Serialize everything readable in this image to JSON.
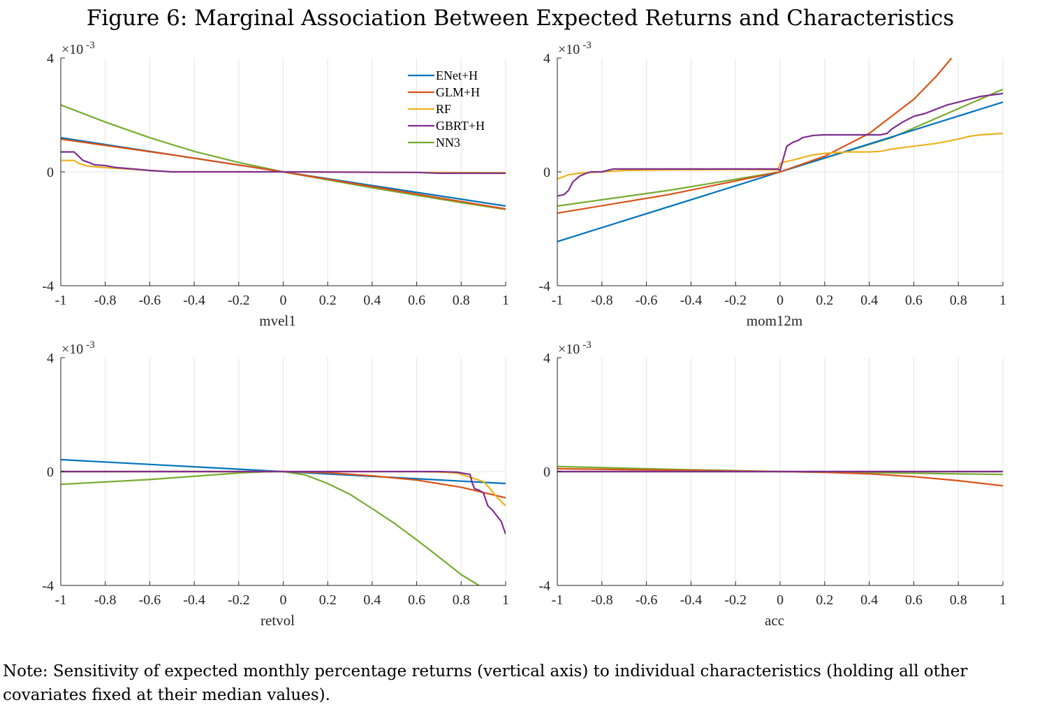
{
  "title": "Figure 6: Marginal Association Between Expected Returns and Characteristics",
  "note": "Note: Sensitivity of expected monthly percentage returns (vertical axis) to individual characteristics (holding all other covariates fixed at their median values).",
  "colors": {
    "ENet+H": "#0072BD",
    "GLM+H": "#D95319",
    "RF": "#EDB120",
    "GBRT+H": "#7E2F8E",
    "NN3": "#77AC30"
  },
  "chart_data": [
    {
      "type": "line",
      "xlabel": "mvel1",
      "xlim": [
        -1,
        1
      ],
      "ylim": [
        -4,
        4
      ],
      "x_ticks": [
        "-1",
        "-0.8",
        "-0.6",
        "-0.4",
        "-0.2",
        "0",
        "0.2",
        "0.4",
        "0.6",
        "0.8",
        "1"
      ],
      "y_ticks": [
        "4",
        "0",
        "-4"
      ],
      "y_exponent": "×10",
      "y_exponent_power": "-3",
      "legend": {
        "placement": "top-right",
        "entries": [
          "ENet+H",
          "GLM+H",
          "RF",
          "GBRT+H",
          "NN3"
        ]
      },
      "series": [
        {
          "name": "ENet+H",
          "x": [
            -1,
            0,
            1
          ],
          "y": [
            1.2,
            0,
            -1.2
          ]
        },
        {
          "name": "GLM+H",
          "x": [
            -1,
            -0.5,
            0,
            0.5,
            1
          ],
          "y": [
            1.15,
            0.6,
            0,
            -0.65,
            -1.3
          ]
        },
        {
          "name": "RF",
          "x": [
            -1,
            -0.94,
            -0.92,
            -0.88,
            -0.8,
            -0.7,
            -0.6,
            -0.5,
            0,
            0.5,
            1
          ],
          "y": [
            0.4,
            0.4,
            0.3,
            0.2,
            0.15,
            0.1,
            0.05,
            0,
            0,
            -0.02,
            -0.03
          ]
        },
        {
          "name": "GBRT+H",
          "x": [
            -1,
            -0.94,
            -0.92,
            -0.9,
            -0.88,
            -0.85,
            -0.8,
            -0.75,
            -0.7,
            -0.6,
            -0.5,
            0,
            0.6,
            0.7,
            1
          ],
          "y": [
            0.7,
            0.7,
            0.55,
            0.4,
            0.35,
            0.25,
            0.22,
            0.15,
            0.12,
            0.05,
            0,
            0,
            -0.02,
            -0.05,
            -0.05
          ]
        },
        {
          "name": "NN3",
          "x": [
            -1,
            -0.8,
            -0.6,
            -0.4,
            -0.2,
            0,
            0.2,
            0.4,
            0.6,
            0.8,
            1
          ],
          "y": [
            2.35,
            1.75,
            1.2,
            0.72,
            0.33,
            0,
            -0.28,
            -0.56,
            -0.82,
            -1.08,
            -1.32
          ]
        }
      ]
    },
    {
      "type": "line",
      "xlabel": "mom12m",
      "xlim": [
        -1,
        1
      ],
      "ylim": [
        -4,
        4
      ],
      "x_ticks": [
        "-1",
        "-0.8",
        "-0.6",
        "-0.4",
        "-0.2",
        "0",
        "0.2",
        "0.4",
        "0.6",
        "0.8",
        "1"
      ],
      "y_ticks": [
        "4",
        "0",
        "-4"
      ],
      "y_exponent": "×10",
      "y_exponent_power": "-3",
      "series": [
        {
          "name": "ENet+H",
          "x": [
            -1,
            0,
            1
          ],
          "y": [
            -2.45,
            0,
            2.45
          ]
        },
        {
          "name": "GLM+H",
          "x": [
            -1,
            -0.5,
            0,
            0.2,
            0.4,
            0.6,
            0.7,
            0.77
          ],
          "y": [
            -1.45,
            -0.8,
            0,
            0.55,
            1.35,
            2.55,
            3.35,
            4.0
          ]
        },
        {
          "name": "RF",
          "x": [
            -1,
            -0.95,
            -0.9,
            -0.8,
            -0.7,
            -0.5,
            -0.2,
            -0.01,
            0.0,
            0.02,
            0.05,
            0.1,
            0.15,
            0.2,
            0.3,
            0.4,
            0.45,
            0.5,
            0.6,
            0.7,
            0.8,
            0.85,
            0.9,
            1
          ],
          "y": [
            -0.25,
            -0.1,
            -0.05,
            0,
            0.05,
            0.07,
            0.08,
            0.07,
            0.3,
            0.35,
            0.4,
            0.5,
            0.6,
            0.65,
            0.7,
            0.7,
            0.72,
            0.8,
            0.9,
            1.0,
            1.15,
            1.25,
            1.3,
            1.35
          ]
        },
        {
          "name": "GBRT+H",
          "x": [
            -1,
            -0.97,
            -0.95,
            -0.93,
            -0.9,
            -0.87,
            -0.85,
            -0.8,
            -0.75,
            -0.7,
            -0.5,
            -0.2,
            -0.01,
            0.0,
            0.01,
            0.03,
            0.06,
            0.08,
            0.1,
            0.15,
            0.2,
            0.3,
            0.4,
            0.45,
            0.48,
            0.5,
            0.55,
            0.6,
            0.65,
            0.7,
            0.75,
            0.8,
            0.85,
            0.9,
            1
          ],
          "y": [
            -0.85,
            -0.8,
            -0.65,
            -0.35,
            -0.15,
            -0.05,
            0,
            0,
            0.1,
            0.1,
            0.1,
            0.1,
            0.1,
            0.05,
            0.35,
            0.9,
            1.05,
            1.1,
            1.2,
            1.28,
            1.3,
            1.3,
            1.3,
            1.3,
            1.35,
            1.5,
            1.75,
            1.95,
            2.05,
            2.2,
            2.35,
            2.45,
            2.55,
            2.65,
            2.75
          ]
        },
        {
          "name": "NN3",
          "x": [
            -1,
            -0.5,
            0,
            0.5,
            1
          ],
          "y": [
            -1.2,
            -0.65,
            0,
            1.2,
            2.9
          ]
        }
      ]
    },
    {
      "type": "line",
      "xlabel": "retvol",
      "xlim": [
        -1,
        1
      ],
      "ylim": [
        -4,
        4
      ],
      "x_ticks": [
        "-1",
        "-0.8",
        "-0.6",
        "-0.4",
        "-0.2",
        "0",
        "0.2",
        "0.4",
        "0.6",
        "0.8",
        "1"
      ],
      "y_ticks": [
        "4",
        "0",
        "-4"
      ],
      "y_exponent": "×10",
      "y_exponent_power": "-3",
      "series": [
        {
          "name": "ENet+H",
          "x": [
            -1,
            0,
            1
          ],
          "y": [
            0.42,
            0,
            -0.42
          ]
        },
        {
          "name": "GLM+H",
          "x": [
            -1,
            -0.5,
            0,
            0.2,
            0.4,
            0.6,
            0.8,
            1
          ],
          "y": [
            0,
            0,
            0,
            -0.04,
            -0.15,
            -0.3,
            -0.55,
            -0.92
          ]
        },
        {
          "name": "RF",
          "x": [
            -1,
            0,
            0.6,
            0.7,
            0.78,
            0.82,
            0.86,
            0.9,
            0.93,
            0.96,
            1
          ],
          "y": [
            0,
            0,
            0,
            -0.02,
            -0.05,
            -0.15,
            -0.25,
            -0.35,
            -0.6,
            -0.9,
            -1.2
          ]
        },
        {
          "name": "GBRT+H",
          "x": [
            -1,
            0,
            0.7,
            0.78,
            0.8,
            0.84,
            0.85,
            0.86,
            0.88,
            0.9,
            0.92,
            0.94,
            0.96,
            0.98,
            1
          ],
          "y": [
            0,
            0,
            0,
            -0.02,
            -0.05,
            -0.1,
            -0.4,
            -0.6,
            -0.65,
            -0.75,
            -1.2,
            -1.35,
            -1.55,
            -1.75,
            -2.2
          ]
        },
        {
          "name": "NN3",
          "x": [
            -1,
            -0.6,
            -0.2,
            -0.05,
            0,
            0.1,
            0.2,
            0.3,
            0.4,
            0.5,
            0.6,
            0.7,
            0.8,
            0.88
          ],
          "y": [
            -0.45,
            -0.28,
            -0.05,
            0,
            0,
            -0.12,
            -0.42,
            -0.8,
            -1.3,
            -1.82,
            -2.4,
            -3.0,
            -3.62,
            -4.0
          ]
        }
      ]
    },
    {
      "type": "line",
      "xlabel": "acc",
      "xlim": [
        -1,
        1
      ],
      "ylim": [
        -4,
        4
      ],
      "x_ticks": [
        "-1",
        "-0.8",
        "-0.6",
        "-0.4",
        "-0.2",
        "0",
        "0.2",
        "0.4",
        "0.6",
        "0.8",
        "1"
      ],
      "y_ticks": [
        "4",
        "0",
        "-4"
      ],
      "y_exponent": "×10",
      "y_exponent_power": "-3",
      "series": [
        {
          "name": "ENet+H",
          "x": [
            -1,
            0,
            1
          ],
          "y": [
            0,
            0,
            0
          ]
        },
        {
          "name": "GLM+H",
          "x": [
            -1,
            -0.5,
            0,
            0.2,
            0.4,
            0.6,
            0.8,
            1
          ],
          "y": [
            0.1,
            0.05,
            0,
            -0.03,
            -0.08,
            -0.18,
            -0.32,
            -0.5
          ]
        },
        {
          "name": "RF",
          "x": [
            -1,
            0,
            1
          ],
          "y": [
            0,
            0,
            0
          ]
        },
        {
          "name": "GBRT+H",
          "x": [
            -1,
            0,
            1
          ],
          "y": [
            0,
            0,
            0
          ]
        },
        {
          "name": "NN3",
          "x": [
            -1,
            -0.5,
            0,
            0.5,
            1
          ],
          "y": [
            0.18,
            0.08,
            0,
            -0.05,
            -0.1
          ]
        }
      ]
    }
  ]
}
